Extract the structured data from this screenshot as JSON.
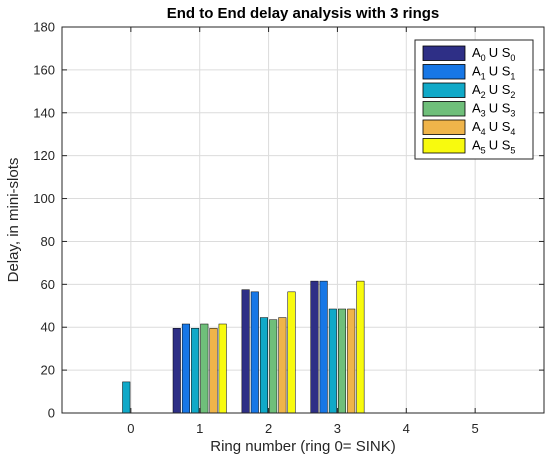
{
  "chart_data": {
    "type": "bar",
    "title": "End to End delay analysis with  3 rings",
    "xlabel": "Ring number (ring 0= SINK)",
    "ylabel": "Delay, in mini-slots",
    "categories": [
      "0",
      "1",
      "2",
      "3",
      "4",
      "5"
    ],
    "ylim": [
      0,
      180
    ],
    "xlim": [
      -1,
      6
    ],
    "yticks": [
      0,
      20,
      40,
      60,
      80,
      100,
      120,
      140,
      160,
      180
    ],
    "grid": true,
    "legend_position": "top-right",
    "series": [
      {
        "name": "A0 U S0",
        "label_main": [
          "A",
          "U S"
        ],
        "subscript": "0",
        "color": "#2e2f86",
        "values": [
          0,
          39.5,
          57.5,
          61.5,
          0,
          0
        ]
      },
      {
        "name": "A1 U S1",
        "label_main": [
          "A",
          "U S"
        ],
        "subscript": "1",
        "color": "#1777e6",
        "values": [
          0,
          41.5,
          56.5,
          61.5,
          0,
          0
        ]
      },
      {
        "name": "A2 U S2",
        "label_main": [
          "A",
          "U S"
        ],
        "subscript": "2",
        "color": "#10a9c8",
        "values": [
          14.5,
          39.5,
          44.5,
          48.5,
          0,
          0
        ]
      },
      {
        "name": "A3 U S3",
        "label_main": [
          "A",
          "U S"
        ],
        "subscript": "3",
        "color": "#6fbf7a",
        "values": [
          0,
          41.5,
          43.5,
          48.5,
          0,
          0
        ]
      },
      {
        "name": "A4 U S4",
        "label_main": [
          "A",
          "U S"
        ],
        "subscript": "4",
        "color": "#efb44a",
        "values": [
          0,
          39.5,
          44.5,
          48.5,
          0,
          0
        ]
      },
      {
        "name": "A5 U S5",
        "label_main": [
          "A",
          "U S"
        ],
        "subscript": "5",
        "color": "#f8fa0e",
        "values": [
          0,
          41.5,
          56.5,
          61.5,
          0,
          0
        ]
      }
    ]
  }
}
